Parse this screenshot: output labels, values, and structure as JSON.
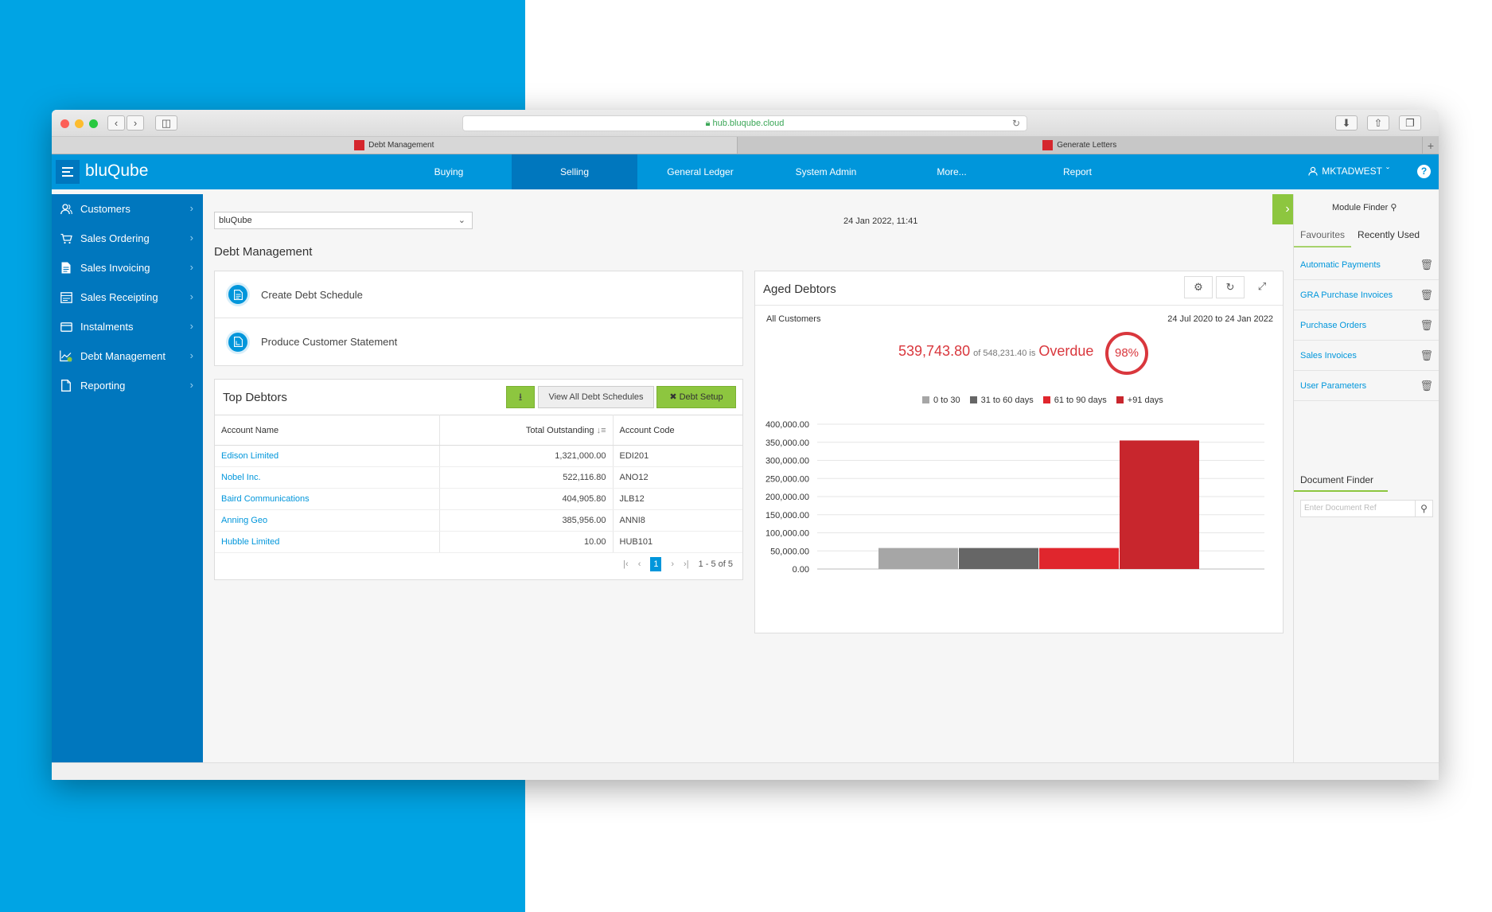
{
  "browser": {
    "url": "hub.bluqube.cloud",
    "tabs": [
      {
        "label": "Debt Management",
        "active": true
      },
      {
        "label": "Generate Letters",
        "active": false
      }
    ]
  },
  "app": {
    "brand": "bluQube",
    "nav": [
      {
        "label": "Buying",
        "active": false
      },
      {
        "label": "Selling",
        "active": true
      },
      {
        "label": "General Ledger",
        "active": false
      },
      {
        "label": "System Admin",
        "active": false
      },
      {
        "label": "More...",
        "active": false
      },
      {
        "label": "Report",
        "active": false
      }
    ],
    "user": "MKTADWEST",
    "help": "?"
  },
  "sidebar": {
    "items": [
      {
        "label": "Customers",
        "icon": "customers-icon"
      },
      {
        "label": "Sales Ordering",
        "icon": "cart-icon"
      },
      {
        "label": "Sales Invoicing",
        "icon": "invoice-icon"
      },
      {
        "label": "Sales Receipting",
        "icon": "receipt-icon"
      },
      {
        "label": "Instalments",
        "icon": "card-icon"
      },
      {
        "label": "Debt Management",
        "icon": "chart-icon"
      },
      {
        "label": "Reporting",
        "icon": "document-icon"
      }
    ]
  },
  "main": {
    "company": "bluQube",
    "datetime": "24 Jan 2022, 11:41",
    "section_title": "Debt Management",
    "actions": [
      {
        "label": "Create Debt Schedule"
      },
      {
        "label": "Produce Customer Statement"
      }
    ],
    "top_debtors": {
      "title": "Top Debtors",
      "view_all_label": "View All Debt Schedules",
      "debt_setup_label": "Debt Setup",
      "columns": [
        "Account Name",
        "Total Outstanding",
        "Account Code"
      ],
      "rows": [
        {
          "name": "Edison Limited",
          "total": "1,321,000.00",
          "code": "EDI201"
        },
        {
          "name": "Nobel Inc.",
          "total": "522,116.80",
          "code": "ANO12"
        },
        {
          "name": "Baird Communications",
          "total": "404,905.80",
          "code": "JLB12"
        },
        {
          "name": "Anning Geo",
          "total": "385,956.00",
          "code": "ANNI8"
        },
        {
          "name": "Hubble Limited",
          "total": "10.00",
          "code": "HUB101"
        }
      ],
      "pager": {
        "page": "1",
        "count": "1 - 5 of 5"
      }
    },
    "aged_debtors": {
      "title": "Aged Debtors",
      "scope": "All Customers",
      "range": "24 Jul 2020 to 24 Jan 2022",
      "overdue_amount": "539,743.80",
      "overdue_of": "of 548,231.40 is",
      "overdue_word": "Overdue",
      "overdue_pct": "98%"
    }
  },
  "chart_data": {
    "type": "bar",
    "categories": [
      "0 to 30",
      "31 to 60 days",
      "61 to 90 days",
      "+91 days"
    ],
    "values": [
      58000,
      58000,
      58000,
      355000
    ],
    "colors": [
      "#a6a6a6",
      "#666666",
      "#e0262d",
      "#c8262d"
    ],
    "legend": [
      "0 to 30",
      "31 to 60 days",
      "61 to 90 days",
      "+91 days"
    ],
    "legend_position": "top",
    "ylim": [
      0,
      400000
    ],
    "yticks": [
      "0.00",
      "50,000.00",
      "100,000.00",
      "150,000.00",
      "200,000.00",
      "250,000.00",
      "300,000.00",
      "350,000.00",
      "400,000.00"
    ],
    "ytick_values": [
      0,
      50000,
      100000,
      150000,
      200000,
      250000,
      300000,
      350000,
      400000
    ],
    "grid": true
  },
  "module_panel": {
    "finder_label": "Module Finder",
    "tabs": [
      {
        "label": "Favourites",
        "active": true
      },
      {
        "label": "Recently Used",
        "active": false
      }
    ],
    "favourites": [
      {
        "label": "Automatic Payments"
      },
      {
        "label": "GRA Purchase Invoices"
      },
      {
        "label": "Purchase Orders"
      },
      {
        "label": "Sales Invoices"
      },
      {
        "label": "User Parameters"
      }
    ],
    "doc_finder_label": "Document Finder",
    "doc_search_placeholder": "Enter Document Ref"
  },
  "colors": {
    "brand_blue": "#0096db",
    "dark_blue": "#0077be",
    "accent_green": "#8dc63f",
    "alert_red": "#d9373d"
  }
}
